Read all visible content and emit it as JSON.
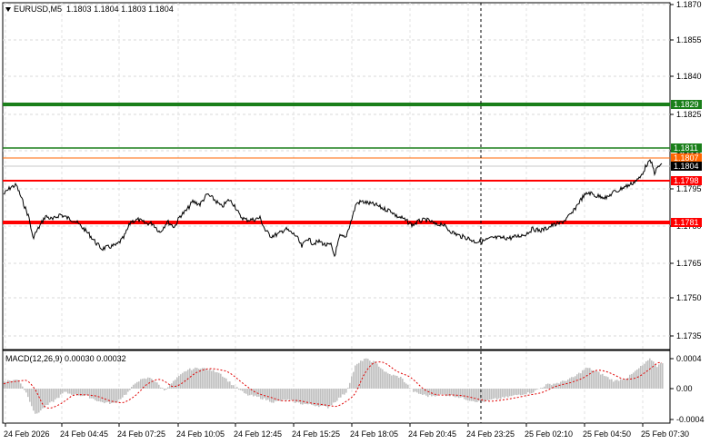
{
  "header": {
    "symbol": "EURUSD,M5",
    "open": "1.1803",
    "high": "1.1804",
    "low": "1.1803",
    "close": "1.1804"
  },
  "macd": {
    "label": "MACD(12,26,9)",
    "main": "0.00030",
    "signal": "0.00032",
    "ticks": [
      "0.0004",
      "0.00",
      "-0.0004"
    ]
  },
  "price_axis": {
    "ticks": [
      "1.1870",
      "1.1855",
      "1.1840",
      "1.1825",
      "1.1810",
      "1.1795",
      "1.1780",
      "1.1765",
      "1.1750",
      "1.1735"
    ]
  },
  "levels": [
    {
      "value": "1.1829",
      "color": "#1a7f1a"
    },
    {
      "value": "1.1811",
      "color": "#1a7f1a"
    },
    {
      "value": "1.1807",
      "color": "#ff6600"
    },
    {
      "value": "1.1804",
      "color": "#000000"
    },
    {
      "value": "1.1798",
      "color": "#ff0000"
    },
    {
      "value": "1.1781",
      "color": "#ff0000"
    }
  ],
  "time_axis": {
    "labels": [
      "24 Feb 2026",
      "24 Feb 04:45",
      "24 Feb 07:25",
      "24 Feb 10:05",
      "24 Feb 12:45",
      "24 Feb 15:25",
      "24 Feb 18:05",
      "24 Feb 20:45",
      "24 Feb 23:25",
      "25 Feb 02:10",
      "25 Feb 04:50",
      "25 Feb 07:30"
    ]
  }
}
